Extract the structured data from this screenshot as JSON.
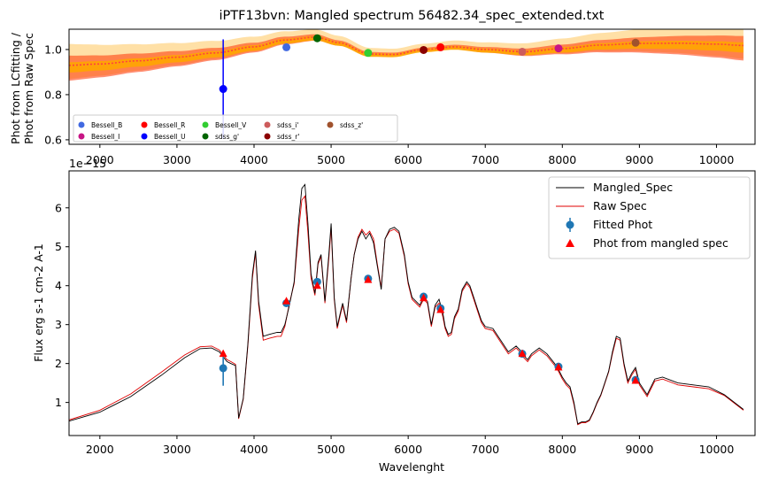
{
  "colors": {
    "mangled": "#000000",
    "raw": "#e00000",
    "fitted": "#1f77b4",
    "mangled_phot": "#ff0000",
    "band_orange": "#ffa500",
    "band_red": "#ff3300",
    "ratio_line": "#ff4040"
  },
  "top": {
    "title": "iPTF13bvn: Mangled spectrum 56482.34_spec_extended.txt",
    "ylabel_line1": "Phot from LCfitting /",
    "ylabel_line2": "Phot from Raw Spec",
    "offset_text": "1e−15",
    "xticks": [
      "2000",
      "3000",
      "4000",
      "5000",
      "6000",
      "7000",
      "8000",
      "9000",
      "10000"
    ],
    "yticks": [
      "0.6",
      "0.8",
      "1.0"
    ],
    "legend": [
      {
        "label": "Bessell_B",
        "color": "#4169e1"
      },
      {
        "label": "Bessell_I",
        "color": "#c71585"
      },
      {
        "label": "Bessell_R",
        "color": "#ff0000"
      },
      {
        "label": "Bessell_U",
        "color": "#0000ff"
      },
      {
        "label": "Bessell_V",
        "color": "#32cd32"
      },
      {
        "label": "sdss_g'",
        "color": "#006400"
      },
      {
        "label": "sdss_i'",
        "color": "#cd5c5c"
      },
      {
        "label": "sdss_r'",
        "color": "#8b0000"
      },
      {
        "label": "sdss_z'",
        "color": "#a0522d"
      }
    ]
  },
  "bottom": {
    "xlabel": "Wavelenght",
    "ylabel": "Flux erg s-1 cm-2 A-1",
    "xticks": [
      "2000",
      "3000",
      "4000",
      "5000",
      "6000",
      "7000",
      "8000",
      "9000",
      "10000"
    ],
    "yticks": [
      "1",
      "2",
      "3",
      "4",
      "5",
      "6"
    ],
    "legend": {
      "mangled": "Mangled_Spec",
      "raw": "Raw Spec",
      "fitted": "Fitted Phot",
      "mangled_phot": "Phot from mangled spec"
    }
  },
  "chart_data": [
    {
      "type": "scatter",
      "title": "iPTF13bvn: Mangled spectrum 56482.34_spec_extended.txt",
      "xlabel": "",
      "ylabel": "Phot from LCfitting / Phot from Raw Spec",
      "xlim": [
        1600,
        10500
      ],
      "ylim": [
        0.58,
        1.09
      ],
      "points": [
        {
          "name": "Bessell_U",
          "x": 3600,
          "y": 0.825,
          "yerr": 0.22
        },
        {
          "name": "Bessell_B",
          "x": 4420,
          "y": 1.01
        },
        {
          "name": "sdss_g'",
          "x": 4820,
          "y": 1.05
        },
        {
          "name": "Bessell_V",
          "x": 5480,
          "y": 0.985
        },
        {
          "name": "sdss_r'",
          "x": 6200,
          "y": 0.998
        },
        {
          "name": "Bessell_R",
          "x": 6420,
          "y": 1.01
        },
        {
          "name": "sdss_i'",
          "x": 7480,
          "y": 0.99
        },
        {
          "name": "Bessell_I",
          "x": 7950,
          "y": 1.005
        },
        {
          "name": "sdss_z'",
          "x": 8950,
          "y": 1.03
        }
      ],
      "fit_curve": {
        "x": [
          1600,
          2000,
          2500,
          3000,
          3500,
          4000,
          4400,
          4800,
          5100,
          5500,
          5800,
          6200,
          6600,
          7000,
          7500,
          8000,
          8500,
          9000,
          9500,
          10000,
          10350
        ],
        "y": [
          0.93,
          0.936,
          0.95,
          0.966,
          0.985,
          1.012,
          1.042,
          1.055,
          1.03,
          0.98,
          0.978,
          1.0,
          1.012,
          1.0,
          0.99,
          1.004,
          1.02,
          1.027,
          1.028,
          1.024,
          1.018
        ]
      },
      "band_orange_outer": {
        "lower_delta": 0.015,
        "upper_delta": 0.015
      },
      "grid": false,
      "legend_position": "lower-left"
    },
    {
      "type": "line",
      "title": "",
      "xlabel": "Wavelenght",
      "ylabel": "Flux erg s-1 cm-2 A-1",
      "y_scale": "1e-15",
      "xlim": [
        1600,
        10500
      ],
      "ylim": [
        0.15,
        6.95
      ],
      "series": [
        {
          "name": "Mangled_Spec",
          "x": [
            1600,
            2000,
            2400,
            2800,
            3100,
            3300,
            3450,
            3550,
            3650,
            3700,
            3760,
            3800,
            3860,
            3920,
            3980,
            4020,
            4060,
            4120,
            4200,
            4300,
            4350,
            4400,
            4460,
            4520,
            4580,
            4620,
            4660,
            4700,
            4740,
            4790,
            4830,
            4870,
            4920,
            4970,
            5000,
            5040,
            5080,
            5120,
            5150,
            5200,
            5260,
            5300,
            5350,
            5400,
            5450,
            5500,
            5550,
            5600,
            5650,
            5700,
            5760,
            5820,
            5880,
            5950,
            6000,
            6050,
            6100,
            6150,
            6200,
            6250,
            6300,
            6350,
            6400,
            6450,
            6480,
            6520,
            6560,
            6600,
            6650,
            6700,
            6760,
            6800,
            6850,
            6900,
            6950,
            7000,
            7100,
            7200,
            7300,
            7400,
            7450,
            7500,
            7550,
            7600,
            7700,
            7800,
            7900,
            7950,
            8000,
            8050,
            8100,
            8150,
            8200,
            8250,
            8300,
            8350,
            8400,
            8450,
            8500,
            8550,
            8600,
            8650,
            8700,
            8750,
            8800,
            8850,
            8900,
            8950,
            9000,
            9050,
            9100,
            9200,
            9300,
            9500,
            9700,
            9900,
            10100,
            10350
          ],
          "y": [
            0.52,
            0.75,
            1.15,
            1.7,
            2.15,
            2.38,
            2.4,
            2.3,
            2.05,
            2.0,
            1.95,
            0.6,
            1.1,
            2.5,
            4.3,
            4.9,
            3.6,
            2.7,
            2.75,
            2.8,
            2.8,
            3.0,
            3.5,
            4.1,
            5.7,
            6.5,
            6.6,
            5.6,
            4.3,
            3.8,
            4.6,
            4.8,
            3.6,
            4.8,
            5.6,
            3.7,
            2.95,
            3.3,
            3.55,
            3.1,
            4.2,
            4.8,
            5.2,
            5.4,
            5.2,
            5.35,
            5.1,
            4.5,
            3.9,
            5.2,
            5.45,
            5.5,
            5.4,
            4.8,
            4.1,
            3.7,
            3.6,
            3.5,
            3.7,
            3.6,
            3.0,
            3.5,
            3.65,
            3.3,
            2.95,
            2.75,
            2.8,
            3.2,
            3.4,
            3.9,
            4.1,
            4.0,
            3.7,
            3.4,
            3.1,
            2.95,
            2.9,
            2.6,
            2.3,
            2.45,
            2.35,
            2.2,
            2.1,
            2.25,
            2.4,
            2.25,
            2.0,
            1.85,
            1.65,
            1.5,
            1.4,
            1.0,
            0.45,
            0.5,
            0.5,
            0.55,
            0.75,
            1.0,
            1.2,
            1.5,
            1.8,
            2.3,
            2.7,
            2.65,
            2.0,
            1.55,
            1.75,
            1.9,
            1.5,
            1.35,
            1.2,
            1.6,
            1.65,
            1.5,
            1.45,
            1.4,
            1.2,
            0.82
          ]
        },
        {
          "name": "Raw Spec",
          "x": [
            1600,
            2000,
            2400,
            2800,
            3100,
            3300,
            3450,
            3550,
            3650,
            3700,
            3760,
            3800,
            3860,
            3920,
            3980,
            4020,
            4060,
            4120,
            4200,
            4300,
            4350,
            4400,
            4460,
            4520,
            4580,
            4620,
            4660,
            4700,
            4740,
            4790,
            4830,
            4870,
            4920,
            4970,
            5000,
            5040,
            5080,
            5120,
            5150,
            5200,
            5260,
            5300,
            5350,
            5400,
            5450,
            5500,
            5550,
            5600,
            5650,
            5700,
            5760,
            5820,
            5880,
            5950,
            6000,
            6050,
            6100,
            6150,
            6200,
            6250,
            6300,
            6350,
            6400,
            6450,
            6480,
            6520,
            6560,
            6600,
            6650,
            6700,
            6760,
            6800,
            6850,
            6900,
            6950,
            7000,
            7100,
            7200,
            7300,
            7400,
            7450,
            7500,
            7550,
            7600,
            7700,
            7800,
            7900,
            7950,
            8000,
            8050,
            8100,
            8150,
            8200,
            8250,
            8300,
            8350,
            8400,
            8450,
            8500,
            8550,
            8600,
            8650,
            8700,
            8750,
            8800,
            8850,
            8900,
            8950,
            9000,
            9050,
            9100,
            9200,
            9300,
            9500,
            9700,
            9900,
            10100,
            10350
          ],
          "y": [
            0.55,
            0.8,
            1.22,
            1.78,
            2.22,
            2.43,
            2.45,
            2.35,
            2.1,
            2.05,
            1.98,
            0.58,
            1.08,
            2.45,
            4.2,
            4.85,
            3.5,
            2.6,
            2.65,
            2.7,
            2.7,
            2.95,
            3.55,
            4.05,
            5.45,
            6.2,
            6.3,
            5.35,
            4.2,
            3.75,
            4.55,
            4.75,
            3.55,
            4.7,
            5.5,
            3.65,
            2.9,
            3.25,
            3.5,
            3.05,
            4.2,
            4.8,
            5.25,
            5.45,
            5.3,
            5.4,
            5.2,
            4.55,
            3.95,
            5.2,
            5.4,
            5.45,
            5.35,
            4.75,
            4.05,
            3.65,
            3.55,
            3.45,
            3.65,
            3.55,
            2.95,
            3.45,
            3.55,
            3.2,
            2.9,
            2.7,
            2.75,
            3.15,
            3.35,
            3.85,
            4.05,
            3.95,
            3.65,
            3.35,
            3.05,
            2.9,
            2.85,
            2.55,
            2.25,
            2.4,
            2.3,
            2.15,
            2.05,
            2.2,
            2.35,
            2.2,
            1.95,
            1.8,
            1.6,
            1.45,
            1.35,
            0.95,
            0.43,
            0.48,
            0.48,
            0.53,
            0.73,
            0.98,
            1.18,
            1.48,
            1.78,
            2.25,
            2.65,
            2.6,
            1.95,
            1.5,
            1.7,
            1.85,
            1.45,
            1.3,
            1.15,
            1.55,
            1.6,
            1.45,
            1.4,
            1.35,
            1.18,
            0.8
          ]
        }
      ],
      "fitted_phot": [
        {
          "x": 3600,
          "y": 1.88,
          "yerr": 0.45
        },
        {
          "x": 4420,
          "y": 3.55,
          "yerr": 0.05
        },
        {
          "x": 4820,
          "y": 4.1,
          "yerr": 0.04
        },
        {
          "x": 5480,
          "y": 4.18,
          "yerr": 0.04
        },
        {
          "x": 6200,
          "y": 3.72,
          "yerr": 0.04
        },
        {
          "x": 6420,
          "y": 3.42,
          "yerr": 0.04
        },
        {
          "x": 7480,
          "y": 2.25,
          "yerr": 0.03
        },
        {
          "x": 7950,
          "y": 1.92,
          "yerr": 0.03
        },
        {
          "x": 8950,
          "y": 1.58,
          "yerr": 0.03
        }
      ],
      "mangled_phot": [
        {
          "x": 3600,
          "y": 2.25
        },
        {
          "x": 4420,
          "y": 3.6
        },
        {
          "x": 4820,
          "y": 4.0
        },
        {
          "x": 5480,
          "y": 4.15
        },
        {
          "x": 6200,
          "y": 3.68
        },
        {
          "x": 6420,
          "y": 3.38
        },
        {
          "x": 7480,
          "y": 2.25
        },
        {
          "x": 7950,
          "y": 1.9
        },
        {
          "x": 8950,
          "y": 1.56
        }
      ],
      "grid": false,
      "legend_position": "top-right"
    }
  ]
}
